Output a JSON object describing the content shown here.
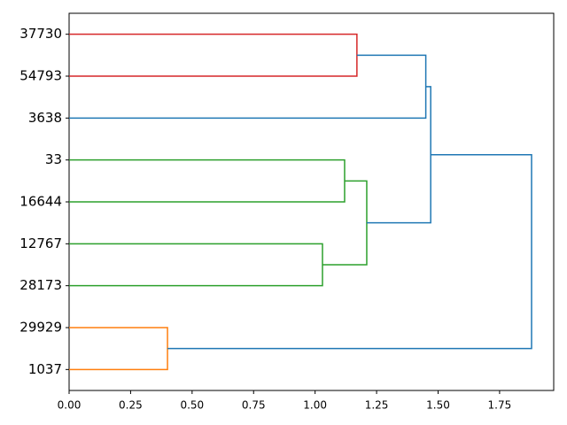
{
  "chart_data": {
    "type": "dendrogram",
    "leaves": [
      "37730",
      "54793",
      "3638",
      "33",
      "16644",
      "12767",
      "28173",
      "29929",
      "1037"
    ],
    "links": [
      {
        "children": [
          0,
          1
        ],
        "height": 1.17,
        "color": "#d62728"
      },
      {
        "children": [
          3,
          4
        ],
        "height": 1.12,
        "color": "#2ca02c"
      },
      {
        "children": [
          5,
          6
        ],
        "height": 1.03,
        "color": "#2ca02c"
      },
      {
        "children": [
          7,
          8
        ],
        "height": 0.4,
        "color": "#ff7f0e"
      },
      {
        "children": [
          9,
          2
        ],
        "height": 1.45,
        "color": "#1f77b4"
      },
      {
        "children": [
          10,
          11
        ],
        "height": 1.21,
        "color": "#2ca02c"
      },
      {
        "children": [
          13,
          14
        ],
        "height": 1.47,
        "color": "#1f77b4"
      },
      {
        "children": [
          15,
          12
        ],
        "height": 1.88,
        "color": "#1f77b4"
      }
    ],
    "xlim": [
      0,
      1.97
    ],
    "xticks": [
      {
        "value": 0,
        "label": "0.00"
      },
      {
        "value": 0.25,
        "label": "0.25"
      },
      {
        "value": 0.5,
        "label": "0.50"
      },
      {
        "value": 0.75,
        "label": "0.75"
      },
      {
        "value": 1,
        "label": "1.00"
      },
      {
        "value": 1.25,
        "label": "1.25"
      },
      {
        "value": 1.5,
        "label": "1.50"
      },
      {
        "value": 1.75,
        "label": "1.75"
      }
    ]
  }
}
